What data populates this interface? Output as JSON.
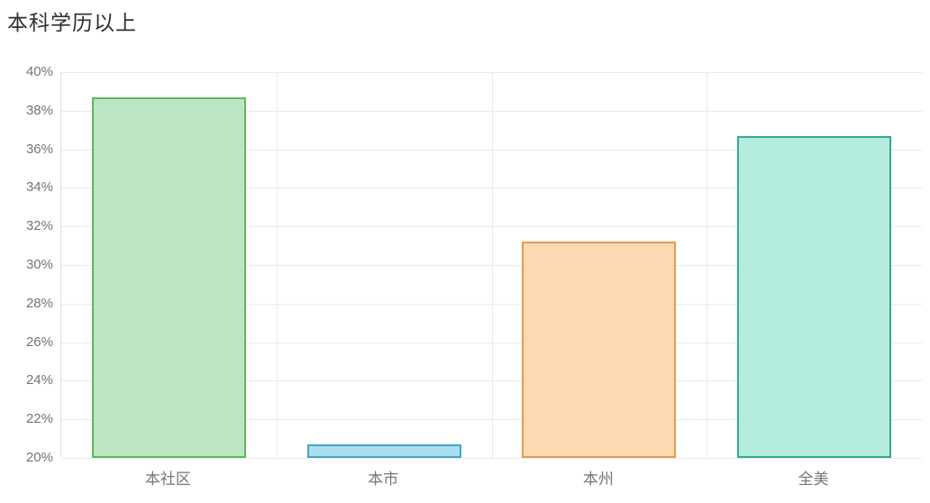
{
  "page_title": "本科学历以上",
  "chart_data": {
    "type": "bar",
    "title": "本科学历以上",
    "categories": [
      "本社区",
      "本市",
      "本州",
      "全美"
    ],
    "values": [
      38.7,
      20.7,
      31.2,
      36.7
    ],
    "unit": "%",
    "xlabel": "",
    "ylabel": "",
    "ylim": [
      20,
      40
    ],
    "ytick_step": 2,
    "ytick_labels": [
      "20%",
      "22%",
      "24%",
      "26%",
      "28%",
      "30%",
      "32%",
      "34%",
      "36%",
      "38%",
      "40%"
    ],
    "grid": "on",
    "legend": "none",
    "bar_styles": [
      {
        "fill": "#bce6c3",
        "border": "#5cb85c"
      },
      {
        "fill": "#a9def2",
        "border": "#45a5c8"
      },
      {
        "fill": "#fcd9b1",
        "border": "#e09c54"
      },
      {
        "fill": "#b4ecde",
        "border": "#35a893"
      }
    ],
    "colors": {
      "background": "#ffffff",
      "gridline": "#ebebeb",
      "axis_line": "#e3e3e3",
      "title_text": "#2f2f2f",
      "tick_text": "#747474"
    }
  }
}
